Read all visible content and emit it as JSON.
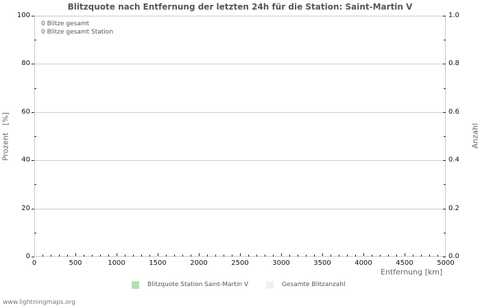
{
  "chart_data": {
    "type": "bar",
    "title": "Blitzquote nach Entfernung der letzten 24h für die Station: Saint-Martin V",
    "xlabel": "Entfernung   [km]",
    "ylabel": "Prozent   [%]",
    "y2label": "Anzahl",
    "xlim": [
      0,
      5000
    ],
    "ylim": [
      0,
      100
    ],
    "y2lim": [
      0.0,
      1.0
    ],
    "x_ticks": [
      "0",
      "500",
      "1000",
      "1500",
      "2000",
      "2500",
      "3000",
      "3500",
      "4000",
      "4500",
      "5000"
    ],
    "y_ticks": [
      "0",
      "20",
      "40",
      "60",
      "80",
      "100"
    ],
    "y2_ticks": [
      "0.0",
      "0.2",
      "0.4",
      "0.6",
      "0.8",
      "1.0"
    ],
    "grid": true,
    "series": [
      {
        "name": "Blitzquote Station Saint-Martin V",
        "color": "#b3e0b0",
        "values": []
      },
      {
        "name": "Gesamte Blitzanzahl",
        "color": "#efeffa",
        "values": []
      }
    ],
    "annotations": [
      "0 Blitze gesamt",
      "0 Blitze gesamt Station"
    ],
    "legend_position": "bottom"
  },
  "footer": "www.lightningmaps.org"
}
